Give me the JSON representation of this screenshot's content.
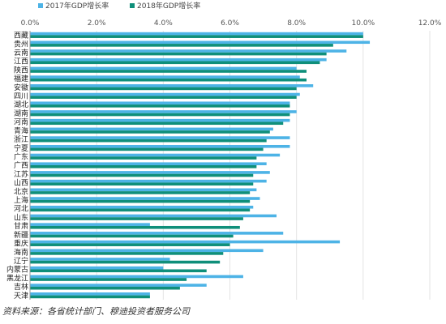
{
  "chart_data": {
    "type": "bar",
    "orientation": "horizontal",
    "xlim": [
      0,
      12
    ],
    "x_ticks": [
      "0.0%",
      "2.0%",
      "4.0%",
      "6.0%",
      "8.0%",
      "10.0%",
      "12.0%"
    ],
    "grid": true,
    "legend_position": "top-left",
    "categories": [
      "西藏",
      "贵州",
      "云南",
      "江西",
      "陕西",
      "福建",
      "安徽",
      "四川",
      "湖北",
      "湖南",
      "河南",
      "青海",
      "浙江",
      "宁夏",
      "广东",
      "广西",
      "江苏",
      "山西",
      "北京",
      "上海",
      "河北",
      "山东",
      "甘肃",
      "新疆",
      "重庆",
      "海南",
      "辽宁",
      "内蒙古",
      "黑龙江",
      "吉林",
      "天津"
    ],
    "series": [
      {
        "name": "2017年GDP增长率",
        "color": "#4db3e6",
        "values": [
          10.0,
          10.2,
          9.5,
          8.9,
          8.0,
          8.1,
          8.5,
          8.1,
          7.8,
          8.0,
          7.8,
          7.3,
          7.8,
          7.8,
          7.5,
          7.1,
          7.2,
          7.1,
          6.8,
          6.9,
          6.7,
          7.4,
          3.6,
          7.6,
          9.3,
          7.0,
          4.2,
          4.0,
          6.4,
          5.3,
          3.6
        ]
      },
      {
        "name": "2018年GDP增长率",
        "color": "#0f8f7a",
        "values": [
          10.0,
          9.1,
          8.9,
          8.7,
          8.3,
          8.3,
          8.0,
          8.0,
          7.8,
          7.8,
          7.6,
          7.2,
          7.1,
          7.0,
          6.8,
          6.8,
          6.7,
          6.7,
          6.6,
          6.6,
          6.6,
          6.4,
          6.3,
          6.1,
          6.0,
          5.8,
          5.7,
          5.3,
          4.7,
          4.5,
          3.6
        ]
      }
    ]
  },
  "source_text": "资料来源：各省统计部门、穆迪投资者服务公司"
}
